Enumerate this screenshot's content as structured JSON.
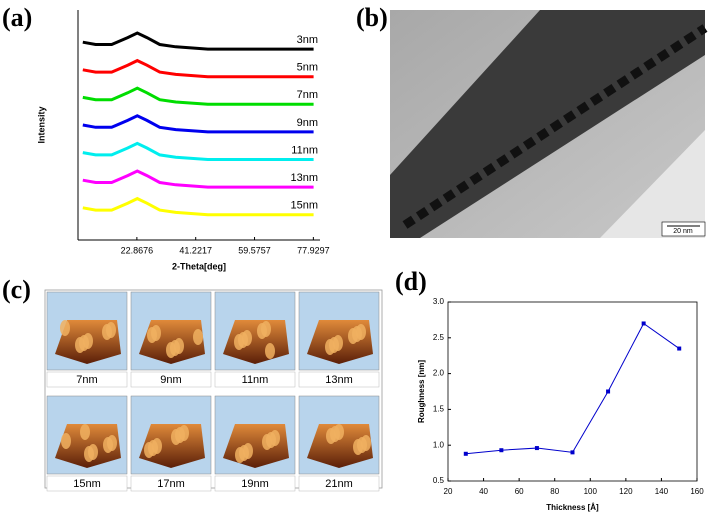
{
  "panel_labels": {
    "a": "(a)",
    "b": "(b)",
    "c": "(c)",
    "d": "(d)"
  },
  "tem": {
    "scale_bar": "20 nm"
  },
  "afm": {
    "labels": [
      "7nm",
      "9nm",
      "11nm",
      "13nm",
      "15nm",
      "17nm",
      "19nm",
      "21nm"
    ]
  },
  "chart_data": [
    {
      "type": "line",
      "x_label": "2-Theta[deg]",
      "y_label": "Intensity",
      "x": [
        6,
        10,
        15,
        20,
        23,
        26,
        30,
        35,
        45,
        55,
        65,
        78
      ],
      "xlim": [
        4.5,
        80
      ],
      "xticks": [
        22.8676,
        41.2217,
        59.5757,
        77.9297
      ],
      "ylim": [
        0,
        100
      ],
      "series": [
        {
          "name": "3nm",
          "color": "#000000",
          "values": [
            86,
            85,
            85,
            88,
            90,
            88,
            85,
            84,
            83,
            83,
            83,
            83
          ]
        },
        {
          "name": "5nm",
          "color": "#ff0000",
          "values": [
            74,
            73,
            73,
            76,
            78,
            76,
            73,
            72,
            71,
            71,
            71,
            71
          ]
        },
        {
          "name": "7nm",
          "color": "#00dd00",
          "values": [
            62,
            61,
            61,
            64,
            66,
            64,
            61,
            60,
            59,
            59,
            59,
            59
          ]
        },
        {
          "name": "9nm",
          "color": "#0000ee",
          "values": [
            50,
            49,
            49,
            52,
            54,
            52,
            49,
            48,
            47,
            47,
            47,
            47
          ]
        },
        {
          "name": "11nm",
          "color": "#00eeee",
          "values": [
            38,
            37,
            37,
            40,
            42,
            40,
            37,
            36,
            35,
            35,
            35,
            35
          ]
        },
        {
          "name": "13nm",
          "color": "#ff00ff",
          "values": [
            26,
            25,
            25,
            28,
            30,
            28,
            25,
            24,
            23,
            23,
            23,
            23
          ]
        },
        {
          "name": "15nm",
          "color": "#ffff00",
          "values": [
            14,
            13,
            13,
            16,
            18,
            16,
            13,
            12,
            11,
            11,
            11,
            11
          ]
        }
      ]
    },
    {
      "type": "line",
      "x_label": "Thickness [Å]",
      "y_label": "Roughness [nm]",
      "x": [
        30,
        50,
        70,
        90,
        110,
        130,
        150
      ],
      "xlim": [
        20,
        160
      ],
      "xticks": [
        20,
        40,
        60,
        80,
        100,
        120,
        140,
        160
      ],
      "ylim": [
        0.5,
        3.0
      ],
      "yticks": [
        0.5,
        {
          "value": 1,
          "label": "1.0"
        },
        1.5,
        {
          "value": 2,
          "label": "2.0"
        },
        2.5,
        {
          "value": 3,
          "label": "3.0"
        }
      ],
      "series": [
        {
          "name": null,
          "color": "#0000cc",
          "values": [
            0.88,
            0.93,
            0.96,
            0.9,
            1.75,
            2.7,
            2.35
          ]
        }
      ]
    }
  ]
}
